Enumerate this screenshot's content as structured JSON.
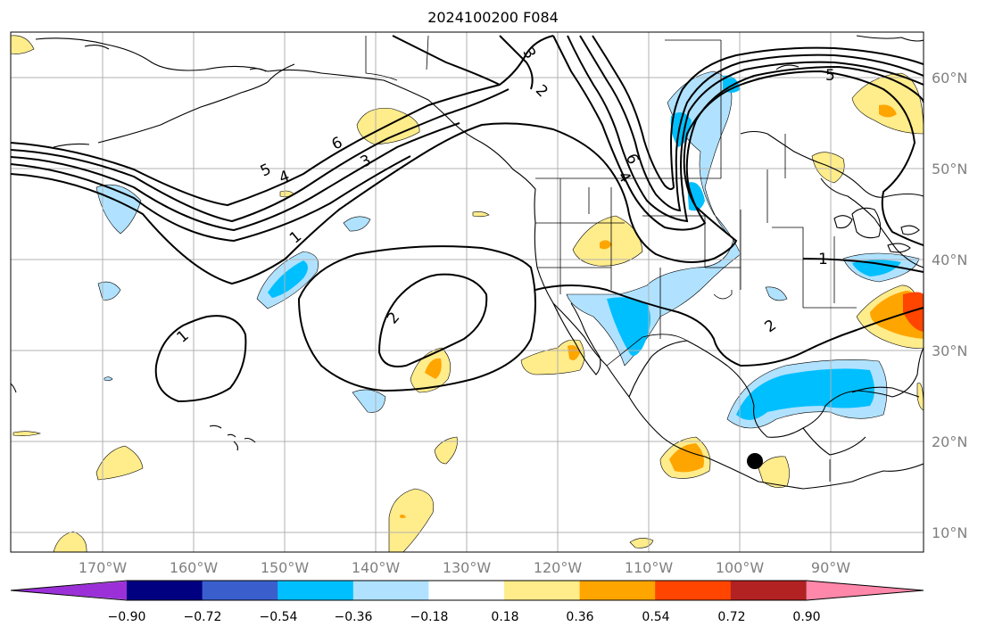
{
  "title": "2024100200 F084",
  "lat_labels": [
    "60°N",
    "50°N",
    "40°N",
    "30°N",
    "20°N",
    "10°N"
  ],
  "lon_labels": [
    "170°W",
    "160°W",
    "150°W",
    "140°W",
    "130°W",
    "120°W",
    "110°W",
    "100°W",
    "90°W"
  ],
  "contour_labels": [
    "1",
    "1",
    "1",
    "2",
    "2",
    "2",
    "3",
    "3",
    "4",
    "4",
    "5",
    "5",
    "6",
    "6"
  ],
  "colorbar": {
    "tick_labels": [
      "−0.90",
      "−0.72",
      "−0.54",
      "−0.36",
      "−0.18",
      "0.18",
      "0.36",
      "0.54",
      "0.72",
      "0.90"
    ],
    "colors": [
      "#9b30d9",
      "#000080",
      "#3a5fcd",
      "#00bfff",
      "#b0e2ff",
      "#ffffff",
      "#ffec8b",
      "#ffa500",
      "#ff4500",
      "#b22222",
      "#ff88aa"
    ]
  },
  "colors": {
    "warm_light": "#ffec8b",
    "warm_mid": "#ffa500",
    "warm_high": "#ff4500",
    "cool_light": "#b0e2ff",
    "cool_mid": "#00bfff"
  }
}
